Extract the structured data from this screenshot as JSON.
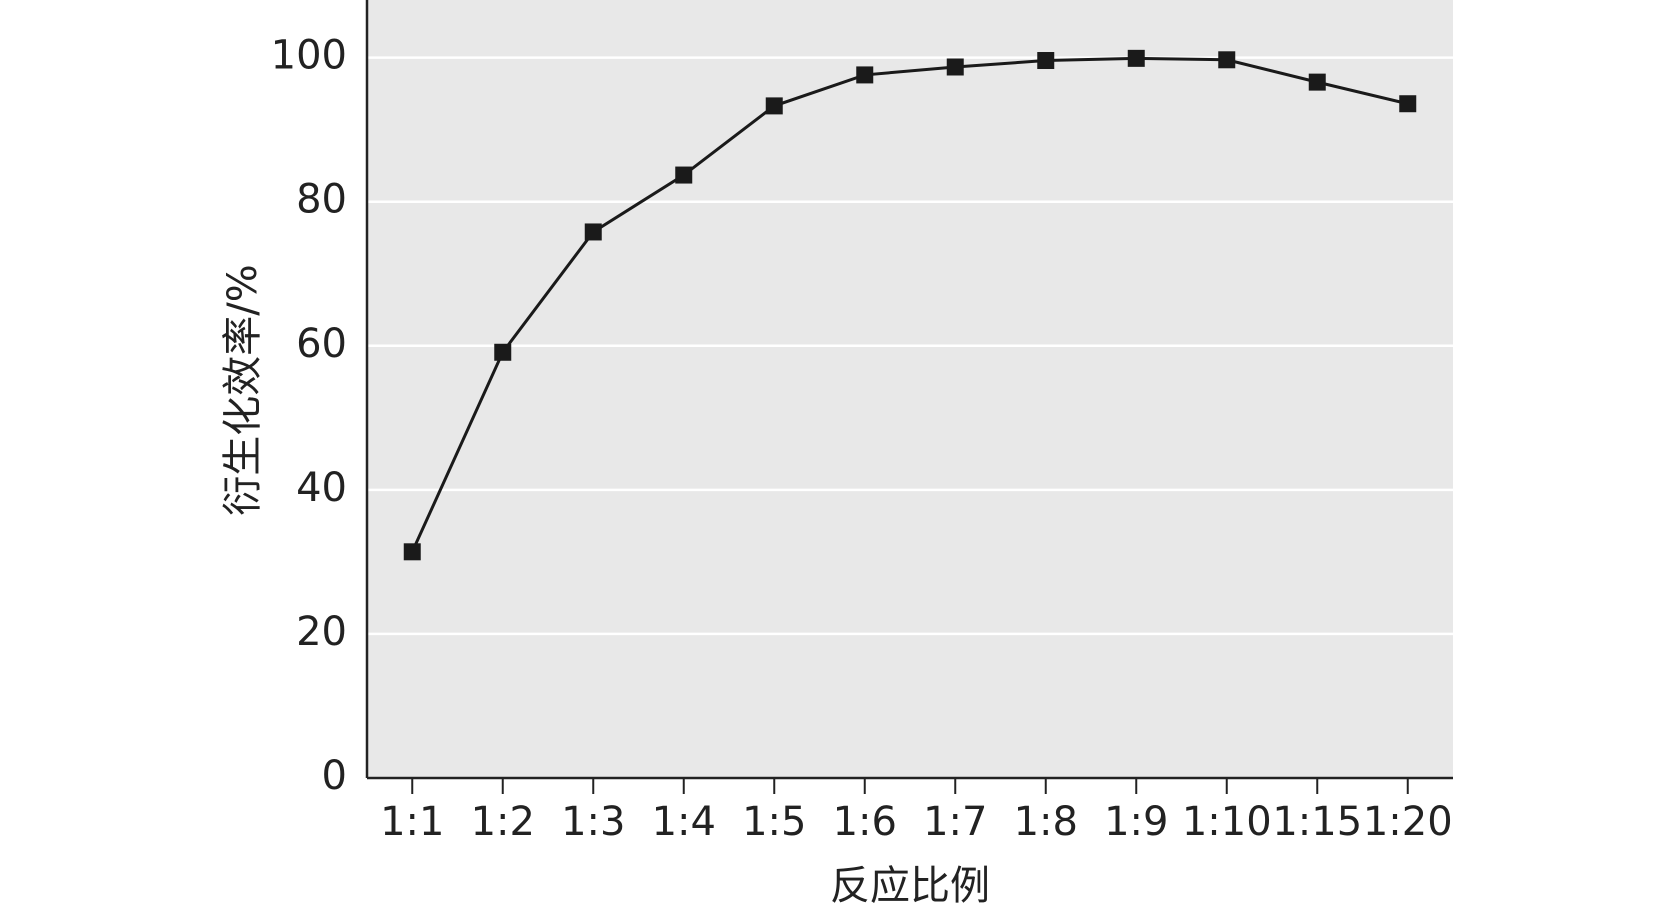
{
  "chart_data": {
    "type": "line",
    "x_label": "反应比例",
    "y_label": "衍生化效率/%",
    "categories": [
      "1:1",
      "1:2",
      "1:3",
      "1:4",
      "1:5",
      "1:6",
      "1:7",
      "1:8",
      "1:9",
      "1:10",
      "1:15",
      "1:20"
    ],
    "series": [
      {
        "color": "#1a1a1a",
        "values": [
          31.4,
          59.1,
          75.8,
          83.7,
          93.3,
          97.6,
          98.7,
          99.6,
          99.9,
          99.7,
          96.6,
          93.6
        ]
      }
    ],
    "ylim": [
      0,
      108
    ],
    "yticks": [
      0,
      20,
      40,
      60,
      80,
      100
    ],
    "grid": true,
    "plot_background": "#e8e8e8"
  }
}
